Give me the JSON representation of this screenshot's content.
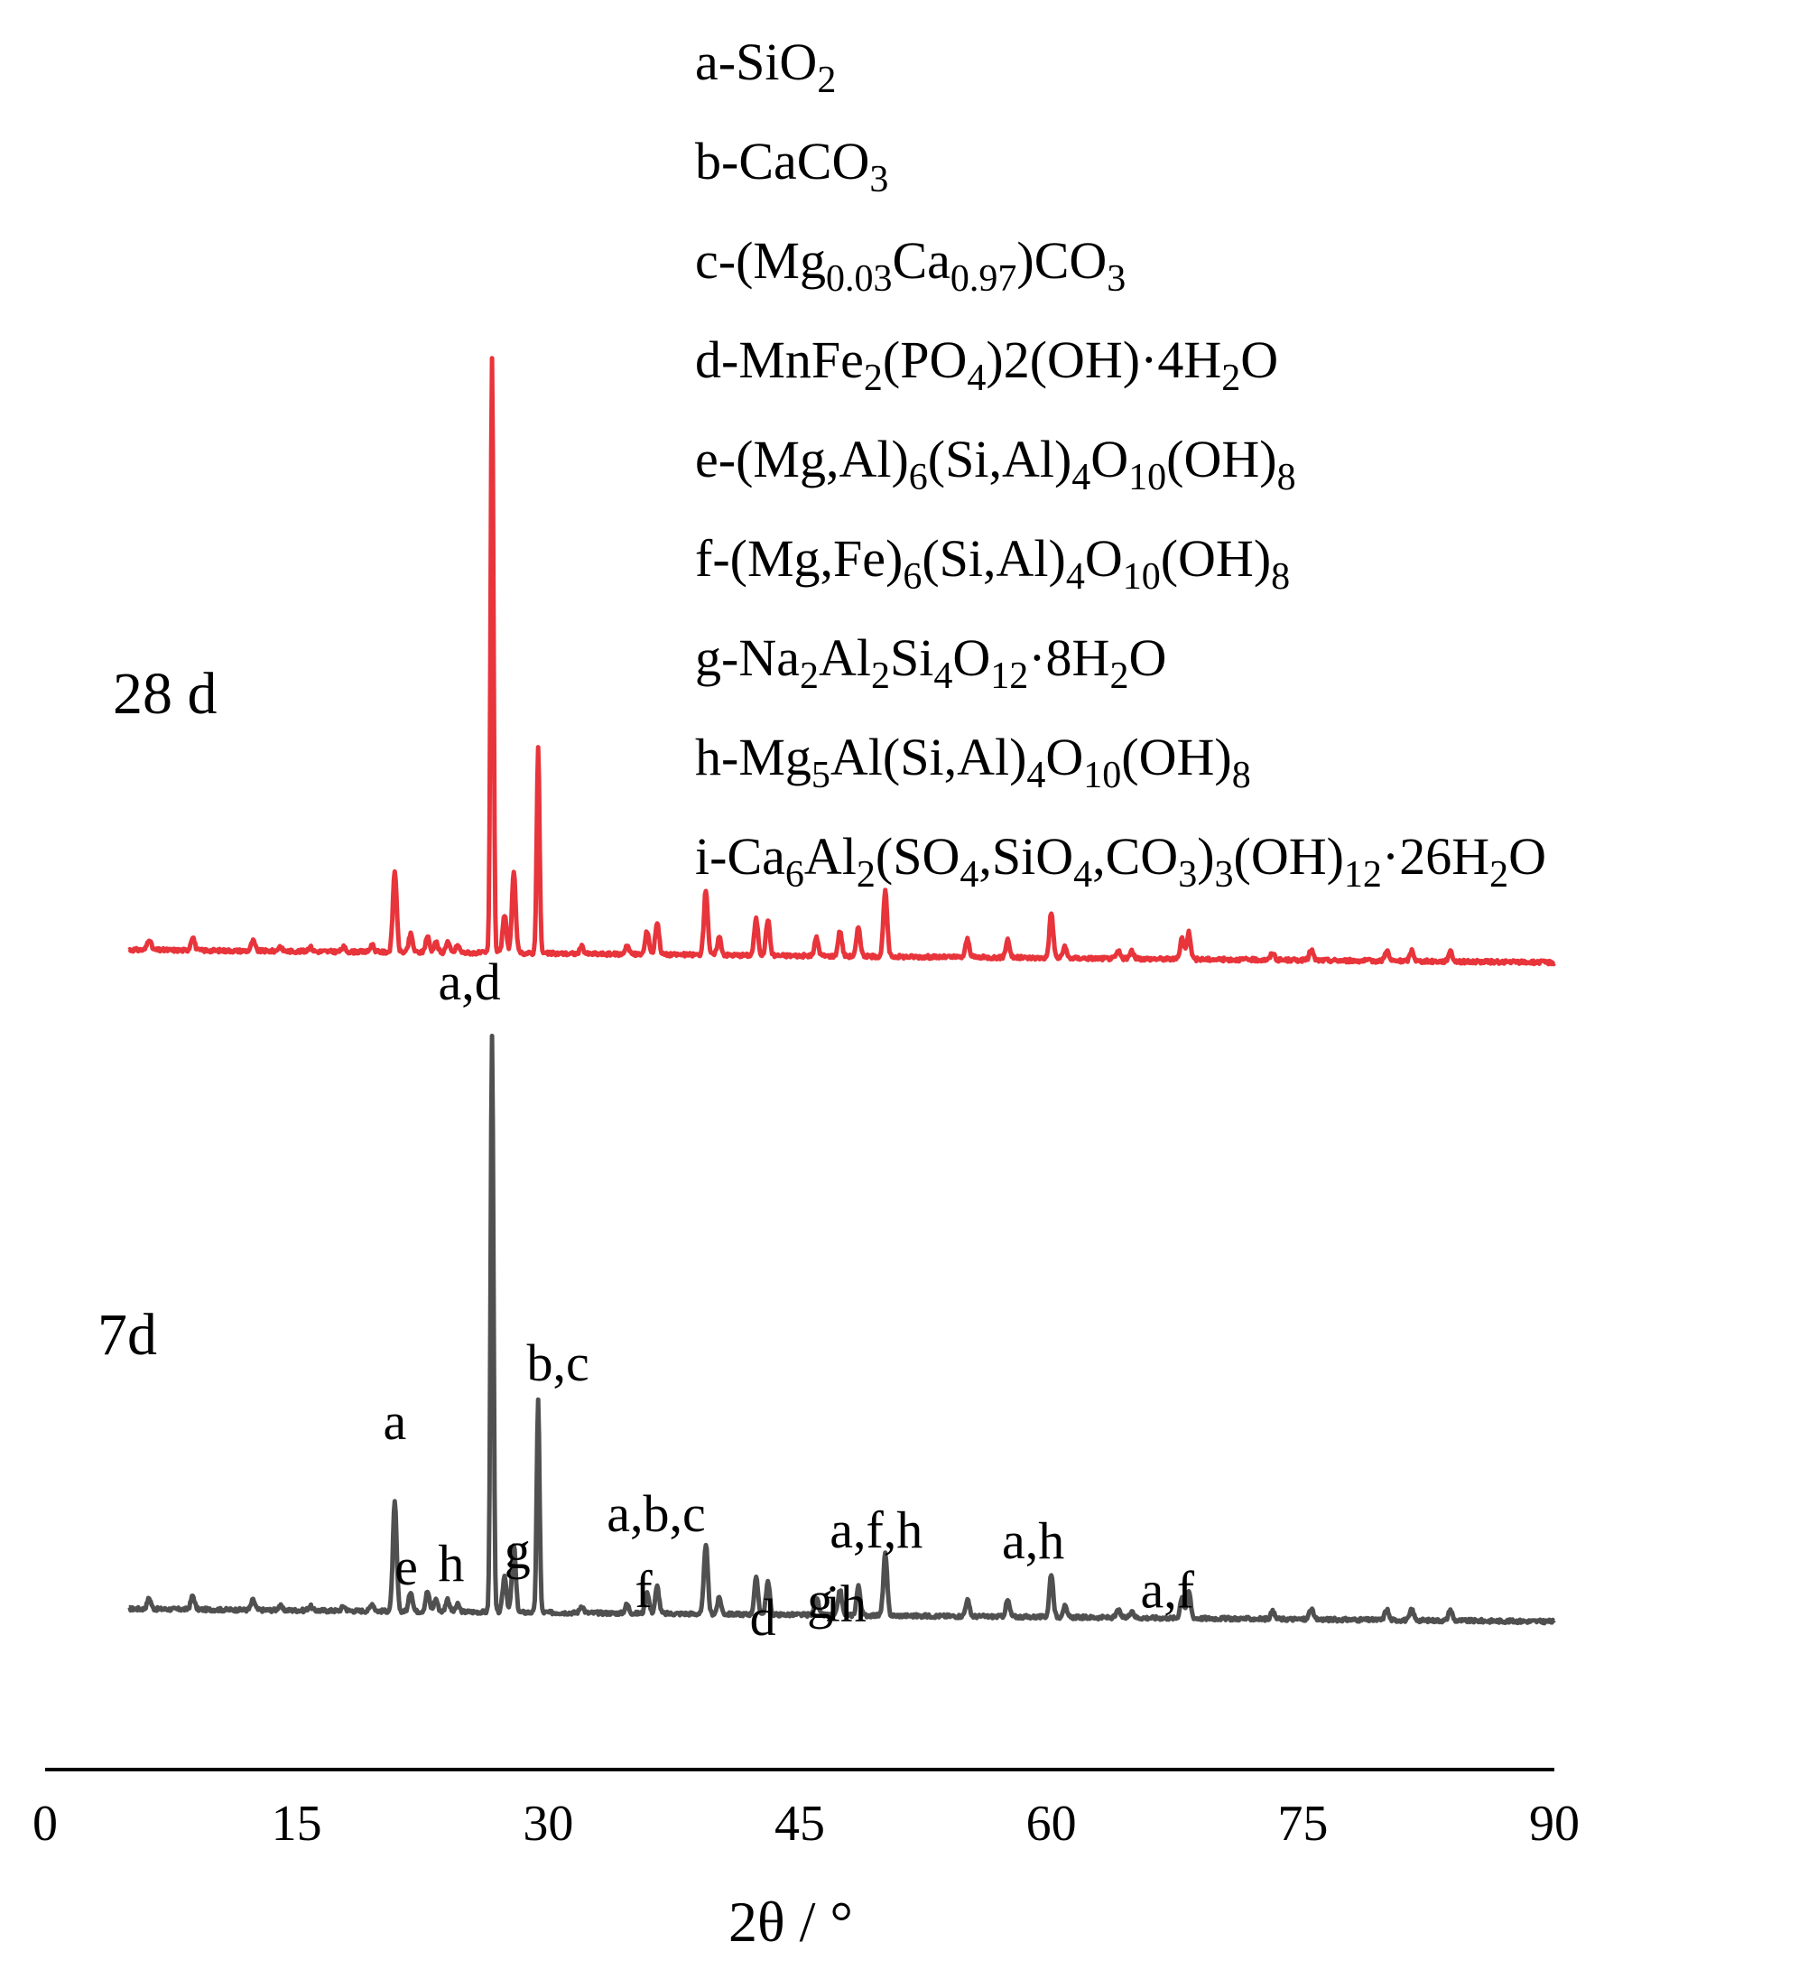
{
  "chart_data": {
    "type": "line",
    "xlabel": "2θ / °",
    "ylabel": "",
    "xlim": [
      0,
      90
    ],
    "xticks": [
      0,
      15,
      30,
      45,
      60,
      75,
      90
    ],
    "x_tick_labels": [
      "0",
      "15",
      "30",
      "45",
      "60",
      "75",
      "90"
    ],
    "y_axis_shown": false,
    "grid": false,
    "colors": {
      "7d": "#505050",
      "28 d": "#e8343b"
    },
    "legend": [
      {
        "key": "a",
        "formula": [
          [
            "SiO",
            ""
          ],
          [
            "2",
            "sub"
          ]
        ]
      },
      {
        "key": "b",
        "formula": [
          [
            "CaCO",
            ""
          ],
          [
            "3",
            "sub"
          ]
        ]
      },
      {
        "key": "c",
        "formula": [
          [
            "(Mg",
            ""
          ],
          [
            "0.03",
            "sub"
          ],
          [
            "Ca",
            ""
          ],
          [
            "0.97",
            "sub"
          ],
          [
            ")CO",
            ""
          ],
          [
            "3",
            "sub"
          ]
        ]
      },
      {
        "key": "d",
        "formula": [
          [
            "MnFe",
            ""
          ],
          [
            "2",
            "sub"
          ],
          [
            "(PO",
            ""
          ],
          [
            "4",
            "sub"
          ],
          [
            ")2(OH)·4H",
            ""
          ],
          [
            "2",
            "sub"
          ],
          [
            "O",
            ""
          ]
        ]
      },
      {
        "key": "e",
        "formula": [
          [
            "(Mg,Al)",
            ""
          ],
          [
            "6",
            "sub"
          ],
          [
            "(Si,Al)",
            ""
          ],
          [
            "4",
            "sub"
          ],
          [
            "O",
            ""
          ],
          [
            "10",
            "sub"
          ],
          [
            "(OH)",
            ""
          ],
          [
            "8",
            "sub"
          ]
        ]
      },
      {
        "key": "f",
        "formula": [
          [
            "(Mg,Fe)",
            ""
          ],
          [
            "6",
            "sub"
          ],
          [
            "(Si,Al)",
            ""
          ],
          [
            "4",
            "sub"
          ],
          [
            "O",
            ""
          ],
          [
            "10",
            "sub"
          ],
          [
            "(OH)",
            ""
          ],
          [
            "8",
            "sub"
          ]
        ]
      },
      {
        "key": "g",
        "formula": [
          [
            "Na",
            ""
          ],
          [
            "2",
            "sub"
          ],
          [
            "Al",
            ""
          ],
          [
            "2",
            "sub"
          ],
          [
            "Si",
            ""
          ],
          [
            "4",
            "sub"
          ],
          [
            "O",
            ""
          ],
          [
            "12",
            "sub"
          ],
          [
            "·8H",
            ""
          ],
          [
            "2",
            "sub"
          ],
          [
            "O",
            ""
          ]
        ]
      },
      {
        "key": "h",
        "formula": [
          [
            "Mg",
            ""
          ],
          [
            "5",
            "sub"
          ],
          [
            "Al(Si,Al)",
            ""
          ],
          [
            "4",
            "sub"
          ],
          [
            "O",
            ""
          ],
          [
            "10",
            "sub"
          ],
          [
            "(OH)",
            ""
          ],
          [
            "8",
            "sub"
          ]
        ]
      },
      {
        "key": "i",
        "formula": [
          [
            "Ca",
            ""
          ],
          [
            "6",
            "sub"
          ],
          [
            "Al",
            ""
          ],
          [
            "2",
            "sub"
          ],
          [
            "(SO",
            ""
          ],
          [
            "4",
            "sub"
          ],
          [
            ",SiO",
            ""
          ],
          [
            "4",
            "sub"
          ],
          [
            ",CO",
            ""
          ],
          [
            "3",
            "sub"
          ],
          [
            ")",
            ""
          ],
          [
            "3",
            "sub"
          ],
          [
            "(OH)",
            ""
          ],
          [
            "12",
            "sub"
          ],
          [
            "·26H",
            ""
          ],
          [
            "2",
            "sub"
          ],
          [
            "O",
            ""
          ]
        ]
      }
    ],
    "series": [
      {
        "name": "28 d",
        "peaks": [
          [
            6.2,
            12
          ],
          [
            8.8,
            15
          ],
          [
            12.4,
            11
          ],
          [
            14,
            5
          ],
          [
            15.8,
            5
          ],
          [
            17.8,
            5
          ],
          [
            19.5,
            8
          ],
          [
            20.85,
            90
          ],
          [
            21.8,
            20
          ],
          [
            22.8,
            18
          ],
          [
            23.3,
            12
          ],
          [
            24,
            12
          ],
          [
            24.6,
            8
          ],
          [
            26.65,
            660
          ],
          [
            27.4,
            42
          ],
          [
            27.95,
            88
          ],
          [
            29.4,
            228
          ],
          [
            32,
            8
          ],
          [
            34.7,
            10
          ],
          [
            35.9,
            26
          ],
          [
            36.5,
            36
          ],
          [
            39.4,
            72
          ],
          [
            40.2,
            20
          ],
          [
            42.4,
            40
          ],
          [
            43.1,
            40
          ],
          [
            46,
            20
          ],
          [
            47.4,
            28
          ],
          [
            48.5,
            32
          ],
          [
            50.1,
            72
          ],
          [
            55,
            20
          ],
          [
            57.4,
            20
          ],
          [
            60,
            50
          ],
          [
            60.8,
            12
          ],
          [
            64,
            8
          ],
          [
            64.8,
            8
          ],
          [
            67.8,
            24
          ],
          [
            68.2,
            30
          ],
          [
            73.2,
            8
          ],
          [
            75.5,
            12
          ],
          [
            80,
            12
          ],
          [
            81.5,
            12
          ],
          [
            83.8,
            12
          ]
        ],
        "baseline_start": 14,
        "baseline_end": 0
      },
      {
        "name": "7d",
        "peaks": [
          [
            6.2,
            12
          ],
          [
            8.8,
            15
          ],
          [
            12.4,
            11
          ],
          [
            14,
            5
          ],
          [
            15.8,
            5
          ],
          [
            17.8,
            5
          ],
          [
            19.5,
            8
          ],
          [
            20.85,
            120
          ],
          [
            21.8,
            22
          ],
          [
            22.8,
            22
          ],
          [
            23.3,
            14
          ],
          [
            24,
            14
          ],
          [
            24.6,
            8
          ],
          [
            26.65,
            640
          ],
          [
            27.4,
            40
          ],
          [
            27.95,
            75
          ],
          [
            29.4,
            235
          ],
          [
            32,
            8
          ],
          [
            34.7,
            10
          ],
          [
            35.9,
            24
          ],
          [
            36.5,
            30
          ],
          [
            39.4,
            78
          ],
          [
            40.2,
            18
          ],
          [
            42.4,
            40
          ],
          [
            43.1,
            36
          ],
          [
            46,
            20
          ],
          [
            47.4,
            28
          ],
          [
            48.5,
            32
          ],
          [
            50.1,
            68
          ],
          [
            55,
            18
          ],
          [
            57.4,
            18
          ],
          [
            60,
            48
          ],
          [
            60.8,
            12
          ],
          [
            64,
            8
          ],
          [
            64.8,
            8
          ],
          [
            67.8,
            24
          ],
          [
            68.2,
            30
          ],
          [
            73.2,
            8
          ],
          [
            75.5,
            12
          ],
          [
            80,
            12
          ],
          [
            81.5,
            12
          ],
          [
            83.8,
            12
          ]
        ],
        "baseline_start": 14,
        "baseline_end": 0
      }
    ],
    "series_labels": [
      "28 d",
      "7d"
    ],
    "annotations_7d": [
      {
        "text": "a",
        "x": 20.85
      },
      {
        "text": "e",
        "x": 21.8
      },
      {
        "text": "h",
        "x": 23.3
      },
      {
        "text": "a,d",
        "x": 26.65
      },
      {
        "text": "g",
        "x": 27.95
      },
      {
        "text": "b,c",
        "x": 29.4
      },
      {
        "text": "f",
        "x": 36.5
      },
      {
        "text": "a,b,c",
        "x": 39.4
      },
      {
        "text": "d",
        "x": 42.8
      },
      {
        "text": "g",
        "x": 46
      },
      {
        "text": "ih",
        "x": 48.3
      },
      {
        "text": "a,f,h",
        "x": 50.1
      },
      {
        "text": "a,h",
        "x": 60
      },
      {
        "text": "a,f",
        "x": 68
      }
    ]
  }
}
